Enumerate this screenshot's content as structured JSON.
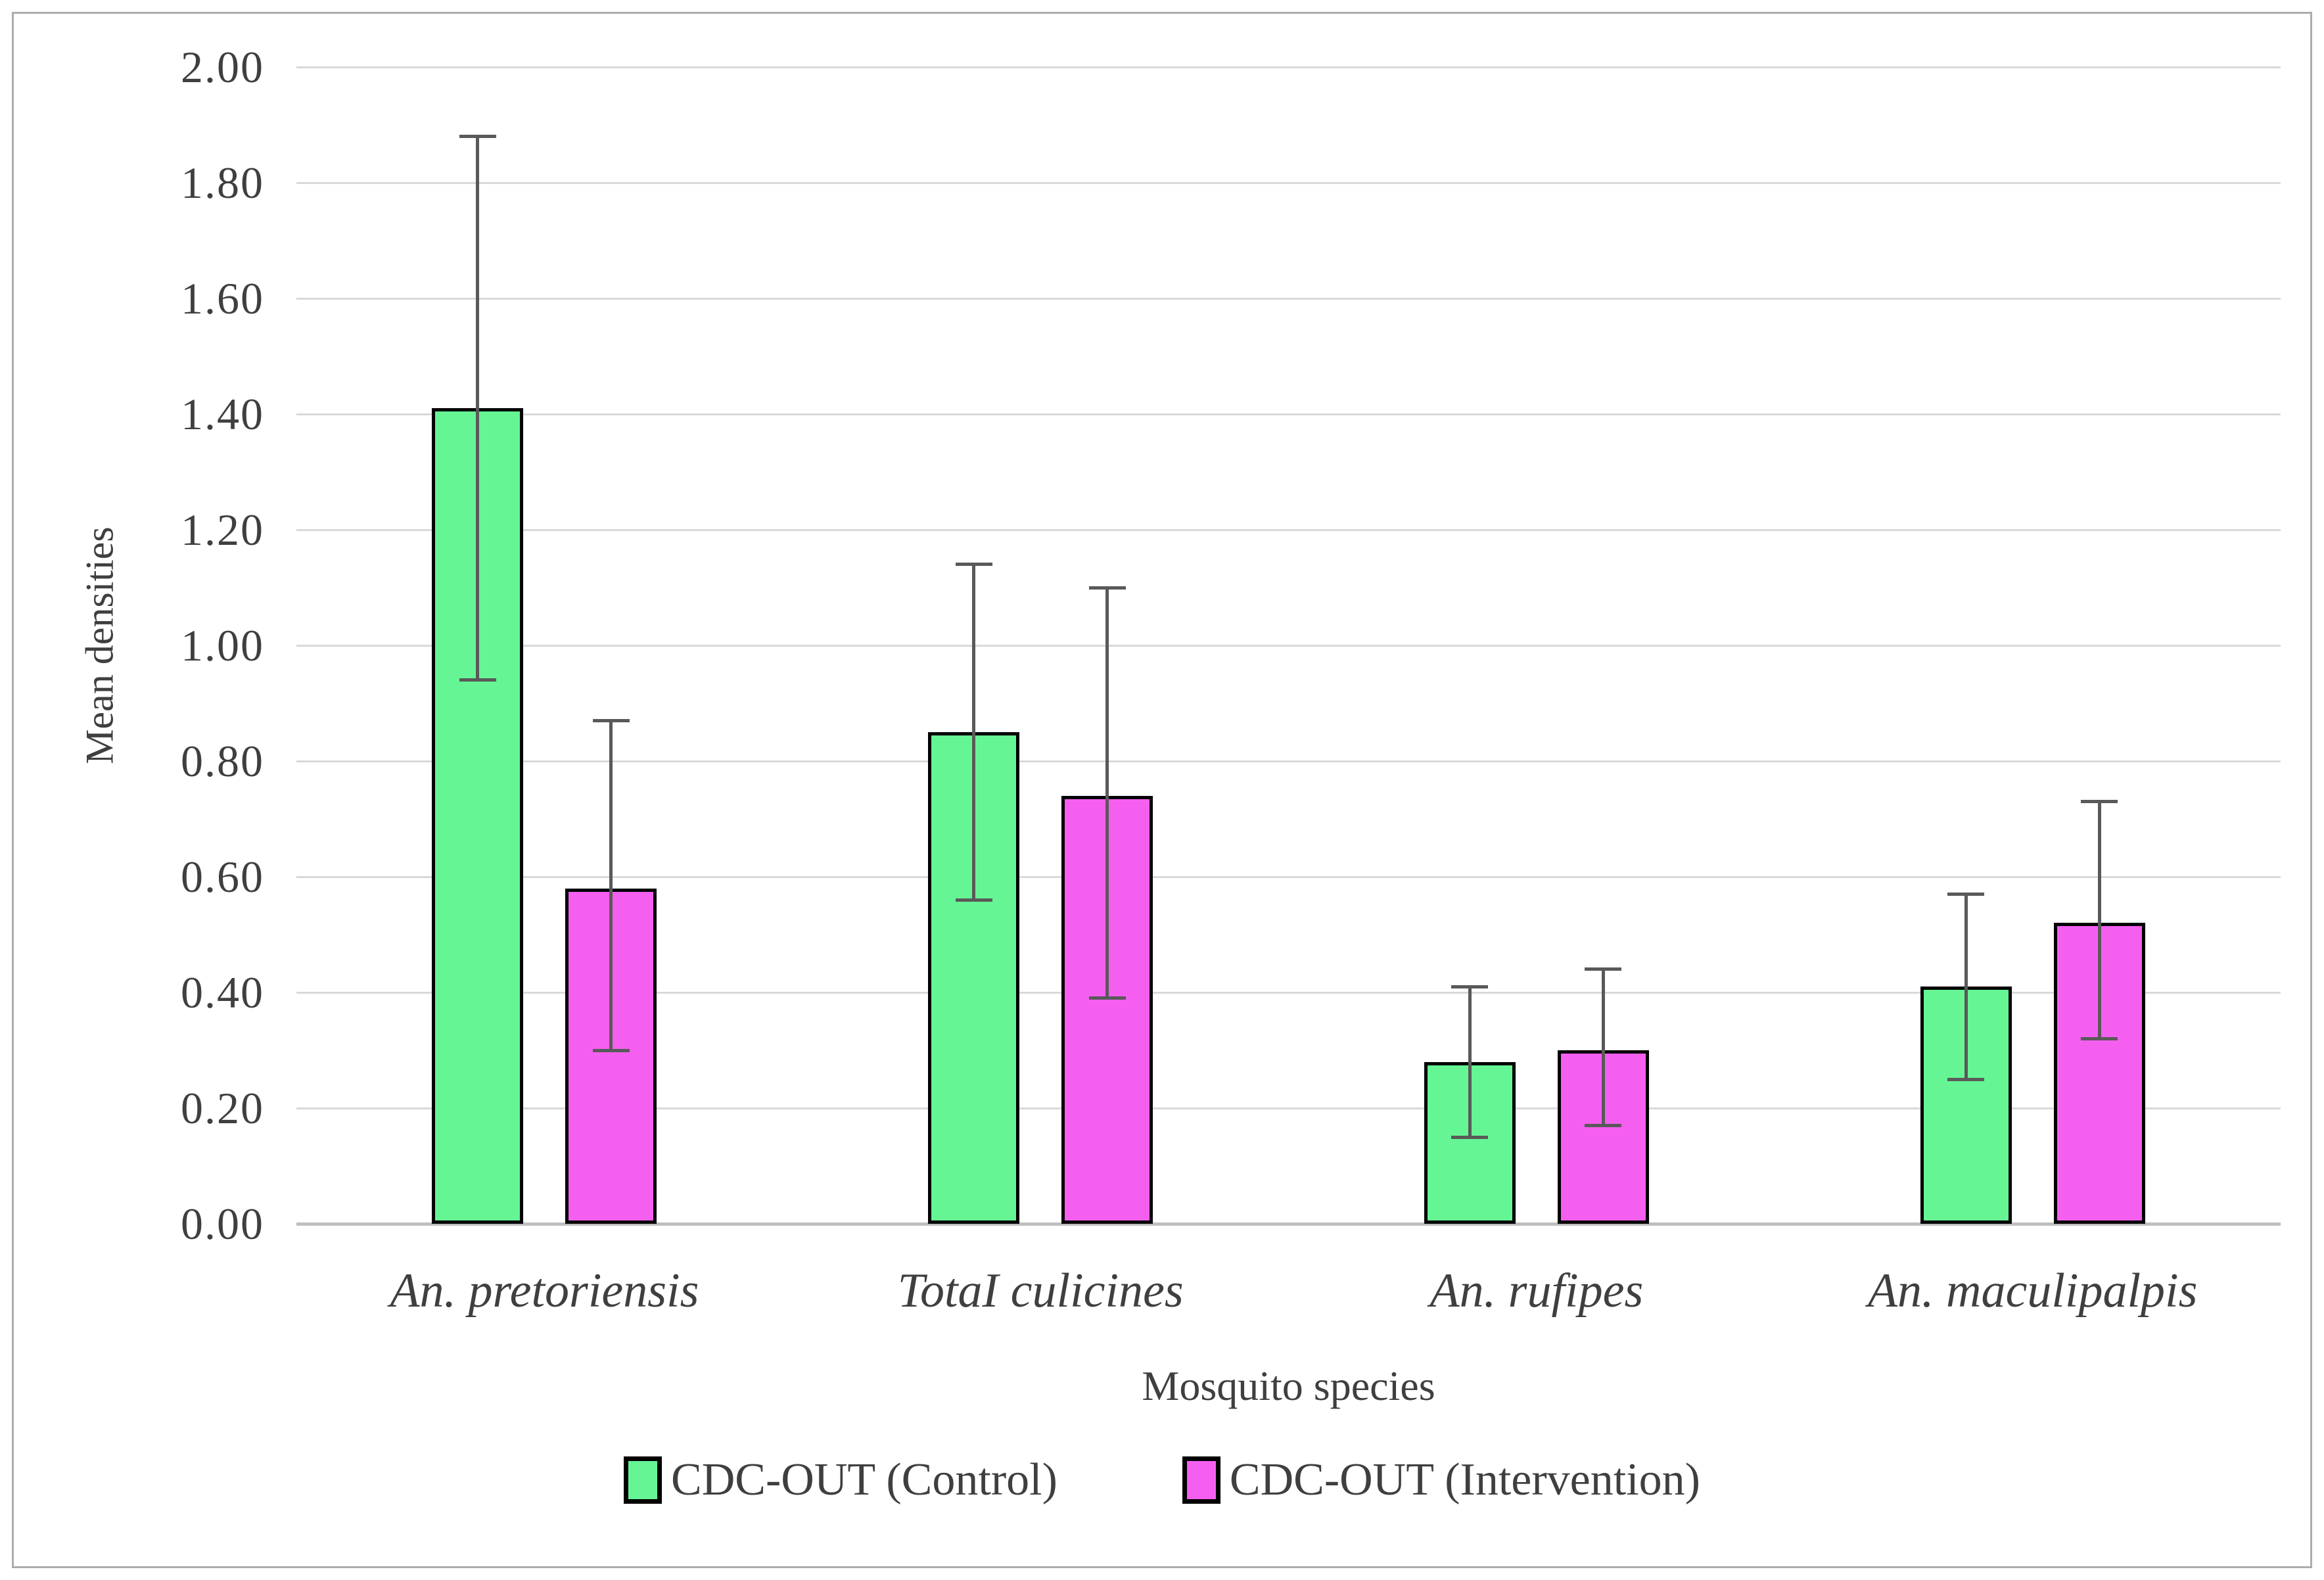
{
  "chart_data": {
    "type": "bar",
    "title": "",
    "xlabel": "Mosquito species",
    "ylabel": "Mean densities",
    "ylim": [
      0.0,
      2.0
    ],
    "ytick_step": 0.2,
    "ytick_labels": [
      "2.00",
      "1.80",
      "1.60",
      "1.40",
      "1.20",
      "1.00",
      "0.80",
      "0.60",
      "0.40",
      "0.20",
      "0.00"
    ],
    "grid": true,
    "legend_position": "bottom-center",
    "error_bars": true,
    "categories": [
      "An. pretoriensis",
      "TotaI culicines",
      "An. rufipes",
      "An. maculipalpis"
    ],
    "series": [
      {
        "name": "CDC-OUT (Control)",
        "color": "#66F594",
        "values": [
          1.41,
          0.85,
          0.28,
          0.41
        ],
        "error_low": [
          0.94,
          0.56,
          0.15,
          0.25
        ],
        "error_high": [
          1.88,
          1.14,
          0.41,
          0.57
        ]
      },
      {
        "name": "CDC-OUT (Intervention)",
        "color": "#F55FF0",
        "values": [
          0.58,
          0.74,
          0.3,
          0.52
        ],
        "error_low": [
          0.3,
          0.39,
          0.17,
          0.32
        ],
        "error_high": [
          0.87,
          1.1,
          0.44,
          0.73
        ]
      }
    ]
  },
  "styles": {
    "bar_border_color": "#000000",
    "error_bar_color": "#595959",
    "gridline_color": "#D9D9D9",
    "axis_line_color": "#BFBFBF",
    "text_color": "#3F3F3F",
    "frame_border_color": "#ACACAC"
  }
}
